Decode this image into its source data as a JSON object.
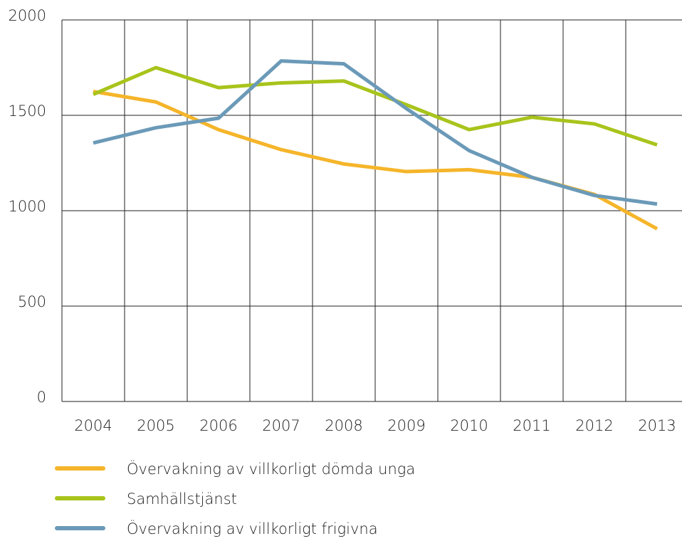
{
  "chart_data": {
    "type": "line",
    "categories": [
      "2004",
      "2005",
      "2006",
      "2007",
      "2008",
      "2009",
      "2010",
      "2011",
      "2012",
      "2013"
    ],
    "series": [
      {
        "name": "Övervakning av villkorligt dömda unga",
        "color": "#f5b52a",
        "values": [
          1625,
          1570,
          1425,
          1320,
          1245,
          1205,
          1215,
          1175,
          1085,
          905
        ]
      },
      {
        "name": "Samhällstjänst",
        "color": "#a8c41c",
        "values": [
          1610,
          1750,
          1645,
          1670,
          1680,
          1555,
          1425,
          1490,
          1455,
          1345
        ]
      },
      {
        "name": "Övervakning av villkorligt frigivna",
        "color": "#6b9ab8",
        "values": [
          1355,
          1435,
          1485,
          1785,
          1770,
          1535,
          1315,
          1175,
          1080,
          1035
        ]
      }
    ],
    "ylim": [
      0,
      2000
    ],
    "yticks": [
      0,
      500,
      1000,
      1500,
      2000
    ],
    "grid": true,
    "legend": "bottom"
  }
}
